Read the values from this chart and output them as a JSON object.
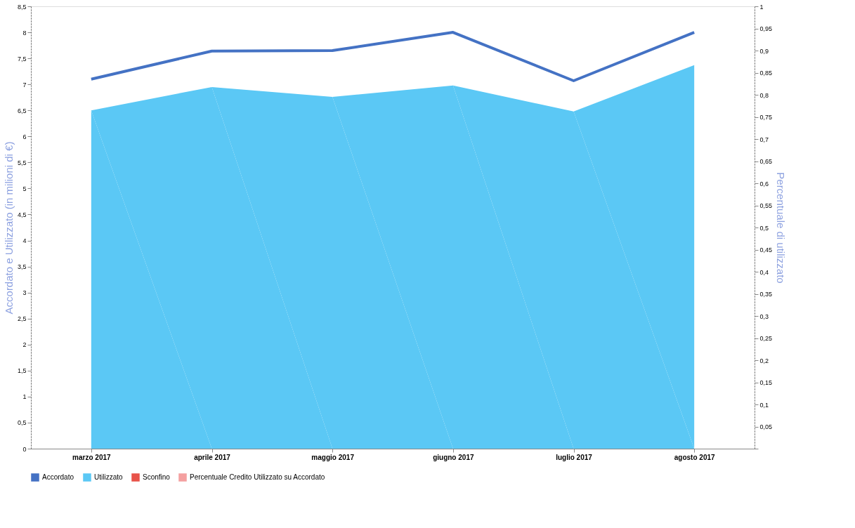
{
  "chart_data": {
    "type": "area",
    "categories": [
      "marzo 2017",
      "aprile 2017",
      "maggio 2017",
      "giugno 2017",
      "luglio 2017",
      "agosto 2017"
    ],
    "ylabel": "Accordato e Utilizzato (in milioni di €)",
    "y2label": "Percentuale di utilizzato",
    "ylim": [
      0,
      8.5
    ],
    "yticks": [
      0,
      {
        "value": 0.5,
        "label": "0,5"
      },
      1,
      {
        "value": 1.5,
        "label": "1,5"
      },
      2,
      {
        "value": 2.5,
        "label": "2,5"
      },
      3,
      {
        "value": 3.5,
        "label": "3,5"
      },
      4,
      {
        "value": 4.5,
        "label": "4,5"
      },
      5,
      {
        "value": 5.5,
        "label": "5,5"
      },
      6,
      {
        "value": 6.5,
        "label": "6,5"
      },
      7,
      {
        "value": 7.5,
        "label": "7,5"
      },
      8,
      {
        "value": 8.5,
        "label": "8,5"
      }
    ],
    "y2lim": [
      0,
      1
    ],
    "y2ticks": [
      {
        "value": 0,
        "label": null
      },
      {
        "value": 0.05,
        "label": "0,05"
      },
      {
        "value": 0.1,
        "label": "0,1"
      },
      {
        "value": 0.15,
        "label": "0,15"
      },
      {
        "value": 0.2,
        "label": "0,2"
      },
      {
        "value": 0.25,
        "label": "0,25"
      },
      {
        "value": 0.3,
        "label": "0,3"
      },
      {
        "value": 0.35,
        "label": "0,35"
      },
      {
        "value": 0.4,
        "label": "0,4"
      },
      {
        "value": 0.45,
        "label": "0,45"
      },
      {
        "value": 0.5,
        "label": "0,5"
      },
      {
        "value": 0.55,
        "label": "0,55"
      },
      {
        "value": 0.6,
        "label": "0,6"
      },
      {
        "value": 0.65,
        "label": "0,65"
      },
      {
        "value": 0.7,
        "label": "0,7"
      },
      {
        "value": 0.75,
        "label": "0,75"
      },
      {
        "value": 0.8,
        "label": "0,8"
      },
      {
        "value": 0.85,
        "label": "0,85"
      },
      {
        "value": 0.9,
        "label": "0,9"
      },
      {
        "value": 0.95,
        "label": "0,95"
      },
      1
    ],
    "grid": false,
    "legend": "bottom",
    "series": [
      {
        "name": "Accordato",
        "type": "line",
        "color": "#4472c4",
        "values": [
          7.1,
          7.64,
          7.65,
          8.0,
          7.07,
          8.0
        ]
      },
      {
        "name": "Utilizzato",
        "color": "#5bc8f5",
        "values": [
          6.5,
          6.95,
          6.76,
          6.98,
          6.48,
          7.37
        ]
      },
      {
        "name": "Sconfino",
        "type": "line",
        "color": "#e8534a",
        "values": [
          null,
          null,
          null,
          null,
          null,
          null
        ]
      },
      {
        "name": "Percentuale Credito Utilizzato su Accordato",
        "type": "line",
        "color": "#f4a0a0",
        "axis": "y2",
        "values": [
          null,
          null,
          null,
          null,
          null,
          null
        ]
      }
    ]
  }
}
